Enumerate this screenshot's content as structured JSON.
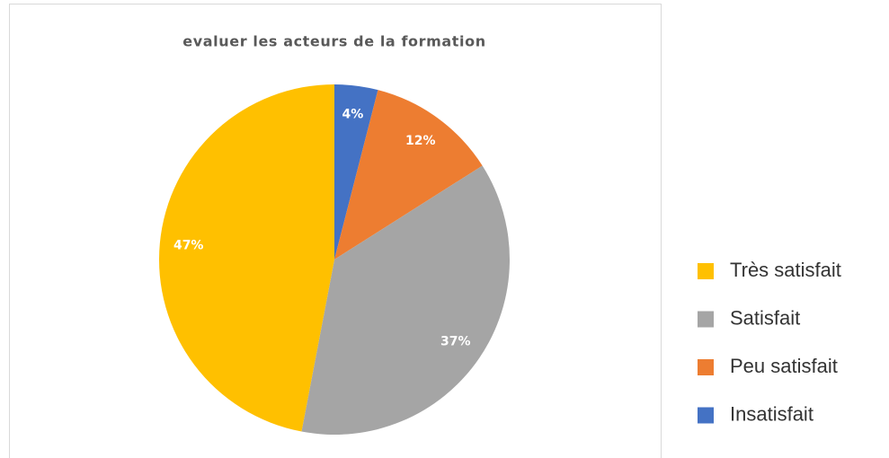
{
  "chart_data": {
    "type": "pie",
    "title": "evaluer les acteurs de la formation",
    "categories": [
      "Très satisfait",
      "Satisfait",
      "Peu satisfait",
      "Insatisfait"
    ],
    "values": [
      47,
      37,
      12,
      4
    ],
    "value_labels": [
      "47%",
      "37%",
      "12%",
      "4%"
    ],
    "colors": [
      "#ffc000",
      "#a5a5a5",
      "#ed7d31",
      "#4472c4"
    ],
    "legend": "right"
  }
}
